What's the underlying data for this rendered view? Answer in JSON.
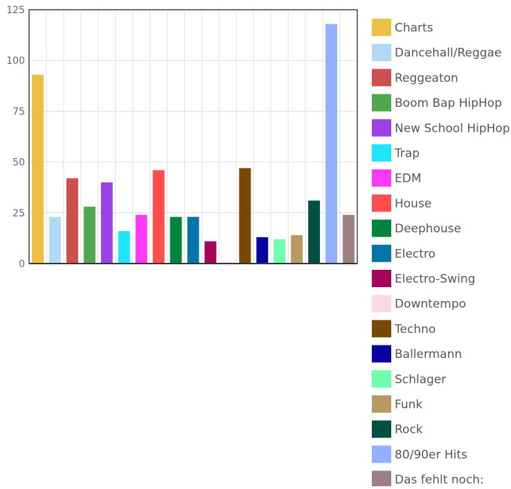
{
  "chart_data": {
    "type": "bar",
    "categories": [
      "Charts",
      "Dancehall/Reggae",
      "Reggeaton",
      "Boom Bap HipHop",
      "New School HipHop",
      "Trap",
      "EDM",
      "House",
      "Deephouse",
      "Electro",
      "Electro-Swing",
      "Downtempo",
      "Techno",
      "Ballermann",
      "Schlager",
      "Funk",
      "Rock",
      "80/90er Hits",
      "Das fehlt noch:"
    ],
    "values": [
      93,
      23,
      42,
      28,
      40,
      16,
      24,
      46,
      23,
      23,
      11,
      1,
      47,
      13,
      12,
      14,
      31,
      118,
      24
    ],
    "colors": [
      "#ecc143",
      "#b1d8f5",
      "#cf4f4f",
      "#4ea84e",
      "#9a43e5",
      "#1ee5fa",
      "#fb3af8",
      "#fd4e4e",
      "#028441",
      "#0574a9",
      "#a6035c",
      "#fcd9e4",
      "#784900",
      "#0504a2",
      "#6ffdae",
      "#b89a61",
      "#044f43",
      "#91b0ff",
      "#9e7f86"
    ],
    "yticks": [
      0,
      25,
      50,
      75,
      100,
      125
    ],
    "ylim": [
      0,
      125
    ],
    "grid": true,
    "legend_position": "right",
    "title": "",
    "xlabel": "",
    "ylabel": ""
  }
}
